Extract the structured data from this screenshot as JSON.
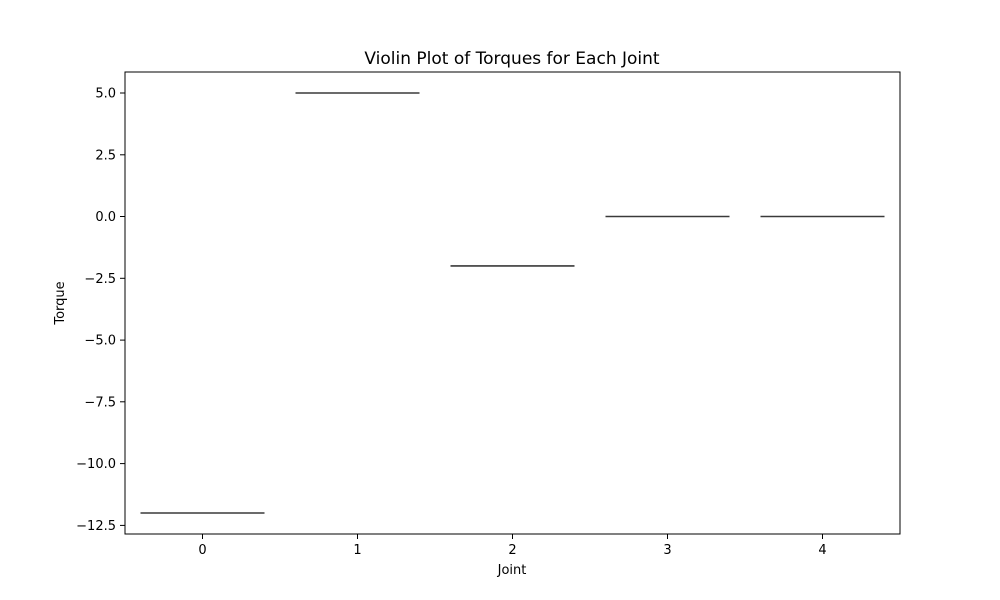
{
  "chart_data": {
    "type": "violin",
    "title": "Violin Plot of Torques for Each Joint",
    "xlabel": "Joint",
    "ylabel": "Torque",
    "categories": [
      "0",
      "1",
      "2",
      "3",
      "4"
    ],
    "values": [
      -12.0,
      5.0,
      -2.0,
      0.0,
      0.0
    ],
    "ylim": [
      -12.85,
      5.85
    ],
    "yticks": [
      5.0,
      2.5,
      0.0,
      -2.5,
      -5.0,
      -7.5,
      -10.0,
      -12.5
    ],
    "ytick_labels": [
      "5.0",
      "2.5",
      "0.0",
      "−2.5",
      "−5.0",
      "−7.5",
      "−10.0",
      "−12.5"
    ],
    "grid": false,
    "colors": {
      "violin": "#3a3a3a",
      "axes": "#000000"
    }
  }
}
